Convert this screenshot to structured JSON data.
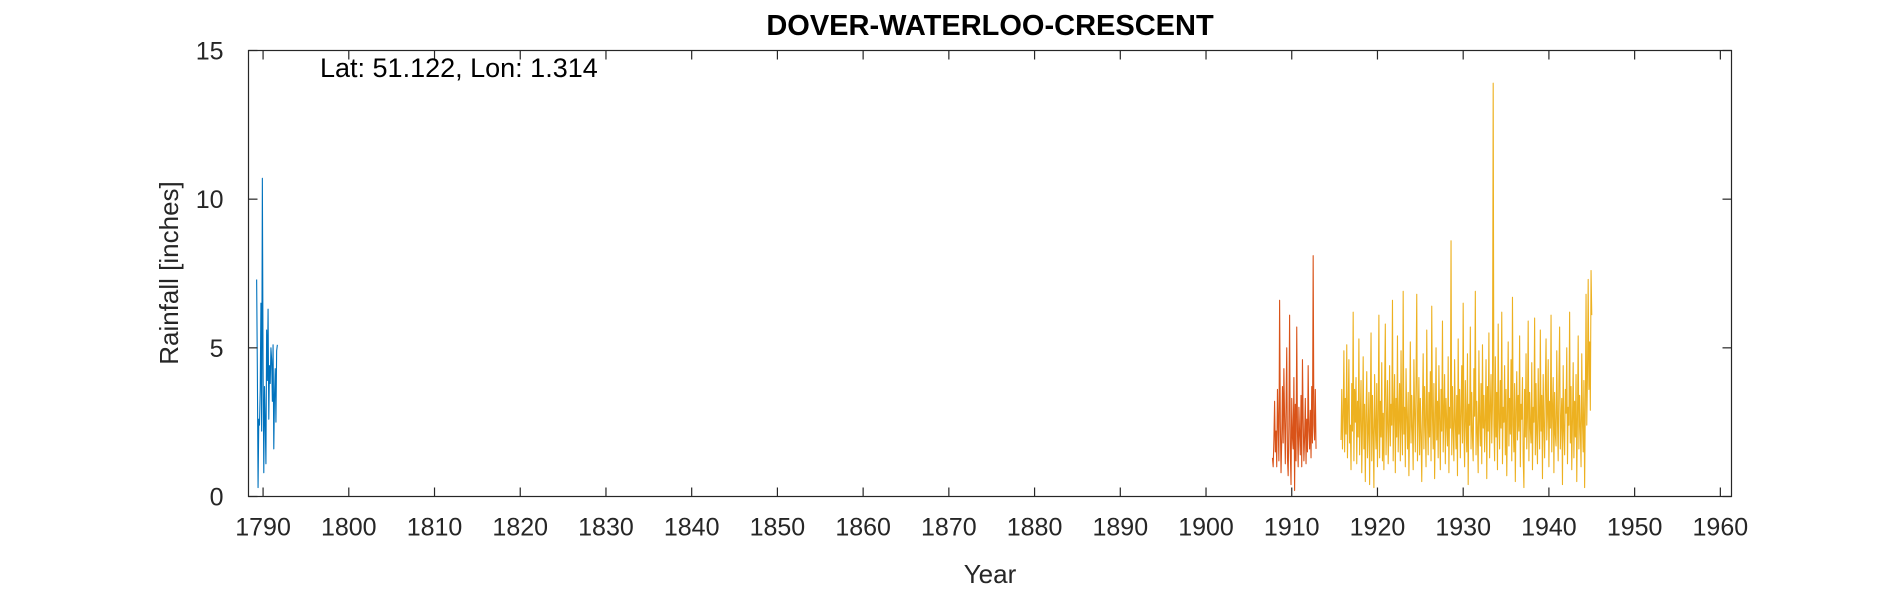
{
  "chart_data": {
    "type": "line",
    "title": "DOVER-WATERLOO-CRESCENT",
    "annotation": "Lat: 51.122, Lon: 1.314",
    "xlabel": "Year",
    "ylabel": "Rainfall [inches]",
    "xlim": [
      1788.3,
      1961.3
    ],
    "ylim": [
      0,
      15
    ],
    "xticks": [
      1790,
      1800,
      1810,
      1820,
      1830,
      1840,
      1850,
      1860,
      1870,
      1880,
      1890,
      1900,
      1910,
      1920,
      1930,
      1940,
      1950,
      1960
    ],
    "yticks": [
      0,
      5,
      10,
      15
    ],
    "grid": false,
    "box": true,
    "series": [
      {
        "color": "#0072BD",
        "x_start": 1789.25,
        "x_step": 0.08333,
        "values": [
          7.3,
          4.2,
          0.3,
          2.6,
          2.4,
          3.6,
          6.5,
          2.2,
          10.7,
          4.3,
          0.8,
          3.7,
          2.5,
          1.1,
          5.6,
          3.9,
          6.3,
          2.6,
          4.4,
          3.8,
          5.0,
          4.6,
          3.2,
          5.1,
          1.6,
          3.4,
          4.3,
          2.5,
          4.9,
          5.1
        ]
      },
      {
        "color": "#D95319",
        "x_start": 1907.75,
        "x_step": 0.08333,
        "values": [
          1.3,
          1.0,
          1.9,
          3.2,
          1.5,
          2.2,
          1.0,
          3.6,
          2.4,
          1.2,
          6.6,
          2.5,
          0.8,
          1.9,
          3.7,
          1.8,
          4.3,
          2.6,
          1.1,
          3.0,
          5.0,
          1.3,
          0.7,
          2.4,
          6.1,
          1.5,
          0.4,
          3.3,
          2.0,
          1.6,
          4.0,
          0.2,
          3.1,
          1.2,
          5.7,
          2.2,
          1.0,
          3.0,
          2.1,
          1.4,
          3.4,
          1.0,
          4.6,
          2.6,
          1.2,
          2.0,
          3.3,
          1.1,
          2.6,
          1.5,
          4.4,
          2.2,
          1.6,
          2.9,
          1.3,
          3.7,
          1.8,
          8.1,
          2.4,
          1.9,
          3.6,
          1.6
        ]
      },
      {
        "color": "#EDB120",
        "x_start": 1915.75,
        "x_step": 0.08333,
        "values": [
          1.9,
          3.6,
          1.6,
          2.7,
          4.9,
          1.5,
          3.3,
          2.1,
          5.1,
          1.3,
          2.9,
          4.6,
          1.8,
          2.4,
          0.9,
          3.8,
          2.2,
          6.2,
          1.2,
          3.6,
          2.5,
          4.0,
          1.1,
          3.2,
          2.0,
          5.3,
          1.4,
          2.7,
          3.9,
          0.8,
          2.3,
          4.7,
          1.6,
          3.1,
          0.5,
          2.8,
          4.2,
          1.3,
          2.2,
          3.5,
          0.4,
          2.9,
          5.5,
          1.2,
          3.4,
          2.1,
          0.3,
          4.1,
          2.4,
          1.6,
          3.8,
          1.0,
          2.6,
          6.1,
          1.3,
          3.2,
          2.0,
          4.5,
          1.2,
          2.8,
          0.9,
          3.6,
          5.8,
          1.4,
          2.5,
          3.9,
          1.1,
          2.2,
          4.4,
          1.7,
          3.1,
          2.4,
          6.6,
          1.2,
          2.9,
          4.1,
          0.8,
          3.3,
          2.0,
          5.4,
          1.5,
          2.6,
          3.8,
          1.2,
          4.9,
          2.3,
          1.4,
          6.9,
          2.1,
          3.0,
          1.0,
          4.3,
          2.7,
          1.6,
          3.5,
          0.7,
          2.4,
          5.2,
          1.8,
          3.4,
          2.2,
          0.9,
          4.6,
          2.8,
          1.5,
          3.9,
          6.8,
          1.2,
          2.5,
          4.0,
          1.4,
          3.3,
          2.1,
          0.5,
          2.9,
          4.8,
          1.6,
          3.7,
          2.3,
          1.0,
          5.6,
          2.6,
          1.4,
          3.5,
          2.0,
          4.2,
          1.2,
          6.4,
          2.7,
          1.6,
          3.8,
          0.6,
          2.4,
          5.0,
          1.9,
          3.2,
          1.3,
          4.4,
          2.6,
          0.9,
          3.6,
          2.2,
          5.9,
          1.5,
          2.8,
          4.1,
          1.1,
          3.3,
          2.4,
          1.7,
          4.7,
          0.8,
          3.0,
          2.3,
          8.6,
          1.4,
          3.7,
          2.2,
          1.2,
          4.6,
          2.5,
          1.6,
          3.4,
          0.7,
          5.3,
          2.1,
          3.6,
          1.3,
          2.8,
          4.4,
          1.8,
          6.5,
          2.2,
          1.0,
          3.9,
          2.6,
          1.5,
          4.8,
          0.4,
          3.1,
          2.4,
          5.7,
          1.6,
          3.5,
          2.0,
          1.2,
          4.3,
          2.7,
          6.9,
          1.4,
          3.2,
          2.1,
          0.8,
          4.9,
          2.5,
          1.7,
          3.8,
          1.1,
          5.1,
          2.3,
          3.4,
          1.5,
          2.6,
          4.6,
          0.6,
          3.7,
          2.2,
          5.5,
          1.3,
          2.9,
          4.1,
          1.8,
          3.1,
          13.9,
          2.4,
          1.2,
          4.7,
          2.0,
          3.5,
          0.9,
          5.8,
          2.6,
          1.6,
          3.9,
          2.3,
          6.2,
          1.1,
          3.0,
          2.5,
          4.4,
          1.4,
          3.6,
          0.7,
          2.8,
          5.2,
          1.7,
          3.3,
          2.1,
          4.6,
          1.2,
          6.7,
          2.4,
          1.5,
          3.8,
          0.5,
          2.9,
          4.2,
          1.9,
          3.4,
          2.2,
          5.4,
          1.0,
          3.1,
          2.6,
          4.0,
          1.3,
          0.3,
          3.6,
          2.0,
          4.8,
          1.6,
          2.7,
          5.9,
          1.2,
          3.5,
          2.3,
          1.8,
          4.5,
          0.9,
          3.0,
          2.5,
          6.0,
          1.4,
          3.8,
          2.1,
          1.1,
          4.3,
          2.7,
          1.6,
          5.6,
          2.2,
          3.4,
          0.6,
          4.1,
          2.4,
          1.3,
          3.7,
          5.3,
          1.9,
          2.8,
          4.6,
          1.0,
          3.2,
          2.3,
          6.1,
          1.5,
          2.9,
          4.0,
          0.8,
          3.5,
          2.1,
          1.7,
          4.9,
          2.6,
          1.2,
          3.9,
          5.7,
          1.6,
          2.5,
          3.3,
          0.4,
          4.4,
          2.2,
          1.4,
          3.6,
          2.8,
          5.0,
          1.1,
          3.0,
          2.4,
          6.2,
          1.8,
          3.7,
          0.9,
          2.6,
          4.5,
          1.3,
          3.2,
          2.0,
          4.1,
          0.5,
          2.7,
          5.4,
          1.6,
          3.4,
          2.3,
          1.0,
          4.8,
          2.5,
          1.5,
          3.9,
          0.3,
          3.1,
          6.8,
          2.4,
          4.1,
          7.3,
          3.6,
          5.2,
          2.9,
          7.6,
          6.1
        ]
      }
    ]
  }
}
